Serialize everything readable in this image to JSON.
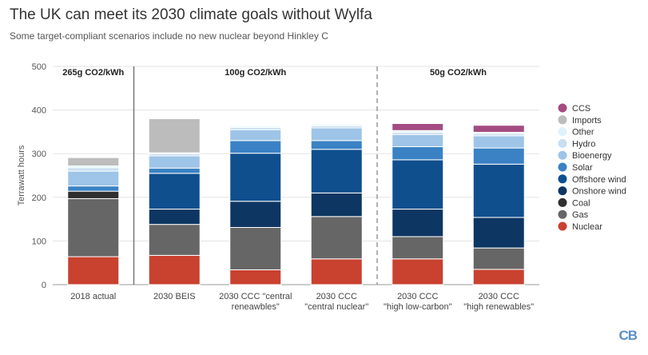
{
  "header": {
    "title": "The UK can meet its 2030 climate goals without Wylfa",
    "subtitle": "Some target-compliant scenarios include no new nuclear beyond Hinkley C"
  },
  "logo_text": "CB",
  "chart_data": {
    "type": "bar",
    "stacked": true,
    "title": "The UK can meet its 2030 climate goals without Wylfa",
    "subtitle": "Some target-compliant scenarios include no new nuclear beyond Hinkley C",
    "ylabel": "Terrawatt hours",
    "xlabel": "",
    "ylim": [
      0,
      500
    ],
    "yticks": [
      0,
      100,
      200,
      300,
      400,
      500
    ],
    "grid": true,
    "legend_position": "right",
    "categories": [
      [
        "2018 actual"
      ],
      [
        "2030 BEIS"
      ],
      [
        "2030 CCC \"central",
        "reneawbles\""
      ],
      [
        "2030 CCC",
        "\"central nuclear\""
      ],
      [
        "2030 CCC",
        "\"high low-carbon\""
      ],
      [
        "2030 CCC",
        "\"high renewables\""
      ]
    ],
    "regions": [
      {
        "label": "265g CO2/kWh",
        "from": 0,
        "to": 0
      },
      {
        "label": "100g CO2/kWh",
        "from": 1,
        "to": 3
      },
      {
        "label": "50g CO2/kWh",
        "from": 4,
        "to": 5
      }
    ],
    "series": [
      {
        "name": "Nuclear",
        "color": "#c9412f",
        "values": [
          64,
          67,
          34,
          59,
          59,
          35
        ]
      },
      {
        "name": "Gas",
        "color": "#666666",
        "values": [
          133,
          71,
          97,
          97,
          51,
          49
        ]
      },
      {
        "name": "Coal",
        "color": "#2f2f2f",
        "values": [
          17,
          0,
          0,
          0,
          0,
          0
        ]
      },
      {
        "name": "Onshore wind",
        "color": "#0d3662",
        "values": [
          0,
          35,
          60,
          54,
          63,
          70
        ]
      },
      {
        "name": "Offshore wind",
        "color": "#0f4f8e",
        "values": [
          0,
          82,
          110,
          100,
          113,
          122
        ]
      },
      {
        "name": "Solar",
        "color": "#3a82c4",
        "values": [
          12,
          12,
          29,
          20,
          30,
          37
        ]
      },
      {
        "name": "Bioenergy",
        "color": "#9ec4e8",
        "values": [
          34,
          28,
          25,
          29,
          28,
          28
        ]
      },
      {
        "name": "Hydro",
        "color": "#c8def1",
        "values": [
          8,
          5,
          5,
          5,
          5,
          5
        ]
      },
      {
        "name": "Other",
        "color": "#dcf3fb",
        "values": [
          4,
          2,
          3,
          3,
          4,
          3
        ]
      },
      {
        "name": "Imports",
        "color": "#bcbcbc",
        "values": [
          19,
          78,
          0,
          0,
          0,
          0
        ]
      },
      {
        "name": "CCS",
        "color": "#a34b82",
        "values": [
          0,
          0,
          0,
          0,
          16,
          16
        ]
      }
    ],
    "legend_order": [
      "CCS",
      "Imports",
      "Other",
      "Hydro",
      "Bioenergy",
      "Solar",
      "Offshore wind",
      "Onshore wind",
      "Coal",
      "Gas",
      "Nuclear"
    ]
  }
}
